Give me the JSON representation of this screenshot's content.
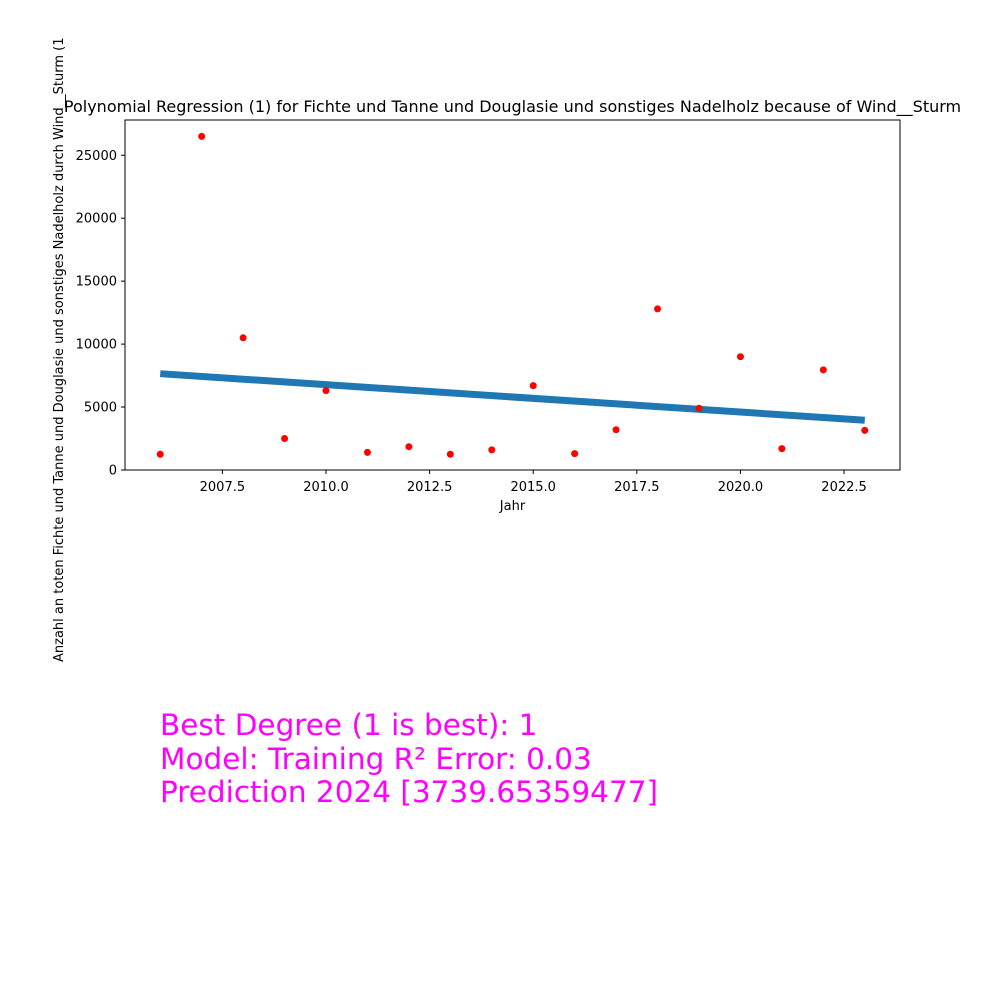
{
  "chart_data": {
    "type": "scatter",
    "title": "Polynomial Regression (1) for Fichte und Tanne und Douglasie und sonstiges Nadelholz because of Wind__Sturm",
    "xlabel": "Jahr",
    "ylabel": "Anzahl an toten Fichte und Tanne und Douglasie und sonstiges Nadelholz durch Wind__Sturm (1",
    "xlim": [
      2005.15,
      2023.85
    ],
    "ylim": [
      0,
      27800
    ],
    "x_ticks": [
      2007.5,
      2010.0,
      2012.5,
      2015.0,
      2017.5,
      2020.0,
      2022.5
    ],
    "x_tick_labels": [
      "2007.5",
      "2010.0",
      "2012.5",
      "2015.0",
      "2017.5",
      "2020.0",
      "2022.5"
    ],
    "y_ticks": [
      0,
      5000,
      10000,
      15000,
      20000,
      25000
    ],
    "y_tick_labels": [
      "0",
      "5000",
      "10000",
      "15000",
      "20000",
      "25000"
    ],
    "grid": false,
    "series": [
      {
        "type": "scatter",
        "color": "#ff0000",
        "x": [
          2006,
          2007,
          2008,
          2009,
          2010,
          2011,
          2012,
          2013,
          2014,
          2015,
          2016,
          2017,
          2018,
          2019,
          2020,
          2021,
          2022,
          2023
        ],
        "y": [
          1250,
          26500,
          10500,
          2500,
          6300,
          1400,
          1850,
          1250,
          1600,
          6700,
          1300,
          3200,
          12800,
          4900,
          9000,
          1700,
          7950,
          3150
        ]
      },
      {
        "type": "line",
        "color": "#1f77b4",
        "x": [
          2006,
          2023
        ],
        "y": [
          7650,
          3950
        ]
      }
    ]
  },
  "annotation": {
    "line1": "Best Degree (1 is best): 1",
    "line2": "Model: Training R² Error: 0.03",
    "line3": "Prediction 2024 [3739.65359477]",
    "color": "#ff00ff"
  }
}
